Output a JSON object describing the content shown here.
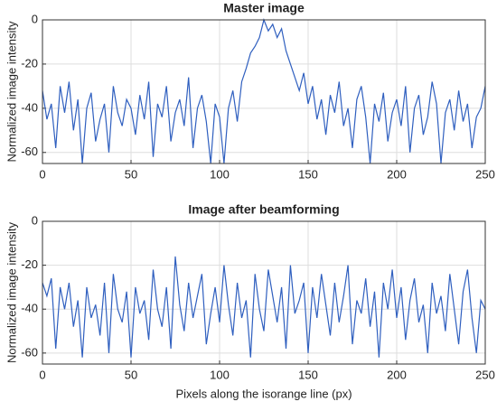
{
  "chart_data": [
    {
      "type": "line",
      "title": "Master image",
      "ylabel": "Normalized image intensity",
      "color": "#2f5fbf",
      "grid": true,
      "xlim": [
        0,
        250
      ],
      "ylim": [
        -65,
        0
      ],
      "xticks": [
        0,
        50,
        100,
        150,
        200,
        250
      ],
      "yticks": [
        -60,
        -40,
        -20,
        0
      ],
      "x": [
        0,
        2.5,
        5,
        7.5,
        10,
        12.5,
        15,
        17.5,
        20,
        22.5,
        25,
        27.5,
        30,
        32.5,
        35,
        37.5,
        40,
        42.5,
        45,
        47.5,
        50,
        52.5,
        55,
        57.5,
        60,
        62.5,
        65,
        67.5,
        70,
        72.5,
        75,
        77.5,
        80,
        82.5,
        85,
        87.5,
        90,
        92.5,
        95,
        97.5,
        100,
        102.5,
        105,
        107.5,
        110,
        112.5,
        115,
        117.5,
        120,
        122.5,
        125,
        127.5,
        130,
        132.5,
        135,
        137.5,
        140,
        142.5,
        145,
        147.5,
        150,
        152.5,
        155,
        157.5,
        160,
        162.5,
        165,
        167.5,
        170,
        172.5,
        175,
        177.5,
        180,
        182.5,
        185,
        187.5,
        190,
        192.5,
        195,
        197.5,
        200,
        202.5,
        205,
        207.5,
        210,
        212.5,
        215,
        217.5,
        220,
        222.5,
        225,
        227.5,
        230,
        232.5,
        235,
        237.5,
        240,
        242.5,
        245,
        247.5,
        250
      ],
      "values": [
        -32,
        -45,
        -38,
        -58,
        -30,
        -42,
        -28,
        -50,
        -36,
        -65,
        -40,
        -33,
        -55,
        -45,
        -38,
        -60,
        -30,
        -42,
        -48,
        -36,
        -40,
        -52,
        -34,
        -45,
        -28,
        -62,
        -38,
        -44,
        -30,
        -55,
        -42,
        -36,
        -48,
        -26,
        -58,
        -40,
        -34,
        -46,
        -65,
        -38,
        -44,
        -65,
        -40,
        -32,
        -46,
        -28,
        -22,
        -15,
        -12,
        -8,
        0,
        -5,
        -2,
        -8,
        -4,
        -14,
        -20,
        -26,
        -32,
        -24,
        -38,
        -30,
        -45,
        -36,
        -52,
        -34,
        -42,
        -28,
        -48,
        -40,
        -58,
        -36,
        -30,
        -44,
        -65,
        -38,
        -46,
        -33,
        -55,
        -42,
        -36,
        -48,
        -30,
        -60,
        -40,
        -34,
        -52,
        -44,
        -28,
        -38,
        -65,
        -42,
        -36,
        -50,
        -32,
        -46,
        -38,
        -58,
        -44,
        -40,
        -30
      ]
    },
    {
      "type": "line",
      "title": "Image after beamforming",
      "ylabel": "Normalized image intensity",
      "xlabel": "Pixels along the isorange line (px)",
      "color": "#2f5fbf",
      "grid": true,
      "xlim": [
        0,
        250
      ],
      "ylim": [
        -65,
        0
      ],
      "xticks": [
        0,
        50,
        100,
        150,
        200,
        250
      ],
      "yticks": [
        -60,
        -40,
        -20,
        0
      ],
      "x": [
        0,
        2.5,
        5,
        7.5,
        10,
        12.5,
        15,
        17.5,
        20,
        22.5,
        25,
        27.5,
        30,
        32.5,
        35,
        37.5,
        40,
        42.5,
        45,
        47.5,
        50,
        52.5,
        55,
        57.5,
        60,
        62.5,
        65,
        67.5,
        70,
        72.5,
        75,
        77.5,
        80,
        82.5,
        85,
        87.5,
        90,
        92.5,
        95,
        97.5,
        100,
        102.5,
        105,
        107.5,
        110,
        112.5,
        115,
        117.5,
        120,
        122.5,
        125,
        127.5,
        130,
        132.5,
        135,
        137.5,
        140,
        142.5,
        145,
        147.5,
        150,
        152.5,
        155,
        157.5,
        160,
        162.5,
        165,
        167.5,
        170,
        172.5,
        175,
        177.5,
        180,
        182.5,
        185,
        187.5,
        190,
        192.5,
        195,
        197.5,
        200,
        202.5,
        205,
        207.5,
        210,
        212.5,
        215,
        217.5,
        220,
        222.5,
        225,
        227.5,
        230,
        232.5,
        235,
        237.5,
        240,
        242.5,
        245,
        247.5,
        250
      ],
      "values": [
        -28,
        -34,
        -26,
        -58,
        -30,
        -40,
        -28,
        -48,
        -36,
        -62,
        -30,
        -44,
        -38,
        -52,
        -28,
        -60,
        -24,
        -40,
        -46,
        -32,
        -62,
        -30,
        -42,
        -36,
        -54,
        -22,
        -40,
        -48,
        -30,
        -58,
        -16,
        -38,
        -50,
        -28,
        -44,
        -34,
        -24,
        -56,
        -42,
        -30,
        -46,
        -20,
        -38,
        -52,
        -28,
        -44,
        -36,
        -62,
        -24,
        -40,
        -50,
        -22,
        -34,
        -46,
        -30,
        -58,
        -20,
        -42,
        -36,
        -28,
        -60,
        -30,
        -44,
        -24,
        -38,
        -52,
        -28,
        -46,
        -34,
        -20,
        -56,
        -36,
        -42,
        -26,
        -48,
        -32,
        -62,
        -28,
        -40,
        -22,
        -44,
        -30,
        -54,
        -36,
        -26,
        -46,
        -38,
        -60,
        -28,
        -42,
        -34,
        -50,
        -24,
        -40,
        -56,
        -32,
        -22,
        -44,
        -60,
        -36,
        -40
      ]
    }
  ]
}
